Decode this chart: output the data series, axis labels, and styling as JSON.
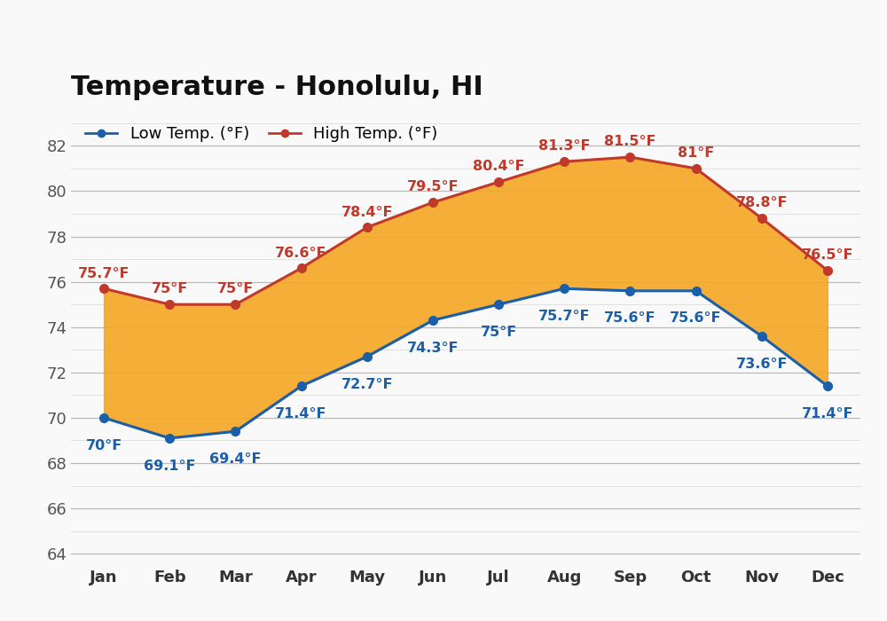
{
  "title": "Temperature - Honolulu, HI",
  "months": [
    "Jan",
    "Feb",
    "Mar",
    "Apr",
    "May",
    "Jun",
    "Jul",
    "Aug",
    "Sep",
    "Oct",
    "Nov",
    "Dec"
  ],
  "low_temps": [
    70.0,
    69.1,
    69.4,
    71.4,
    72.7,
    74.3,
    75.0,
    75.7,
    75.6,
    75.6,
    73.6,
    71.4
  ],
  "high_temps": [
    75.7,
    75.0,
    75.0,
    76.6,
    78.4,
    79.5,
    80.4,
    81.3,
    81.5,
    81.0,
    78.8,
    76.5
  ],
  "low_labels": [
    "70°F",
    "69.1°F",
    "69.4°F",
    "71.4°F",
    "72.7°F",
    "74.3°F",
    "75°F",
    "75.7°F",
    "75.6°F",
    "75.6°F",
    "73.6°F",
    "71.4°F"
  ],
  "high_labels": [
    "75.7°F",
    "75°F",
    "75°F",
    "76.6°F",
    "78.4°F",
    "79.5°F",
    "80.4°F",
    "81.3°F",
    "81.5°F",
    "81°F",
    "78.8°F",
    "76.5°F"
  ],
  "low_color": "#1a5fa8",
  "high_color": "#c0392b",
  "fill_color": "#f5a623",
  "fill_alpha": 0.9,
  "ylim": [
    63.5,
    83.5
  ],
  "yticks_major": [
    64,
    66,
    68,
    70,
    72,
    74,
    76,
    78,
    80,
    82
  ],
  "yticks_minor": [
    63,
    64,
    65,
    66,
    67,
    68,
    69,
    70,
    71,
    72,
    73,
    74,
    75,
    76,
    77,
    78,
    79,
    80,
    81,
    82,
    83
  ],
  "bg_color": "#f9f9f9",
  "grid_color_major": "#bbbbbb",
  "grid_color_minor": "#dddddd",
  "title_fontsize": 22,
  "label_fontsize": 11.5,
  "tick_fontsize": 13,
  "legend_fontsize": 13
}
